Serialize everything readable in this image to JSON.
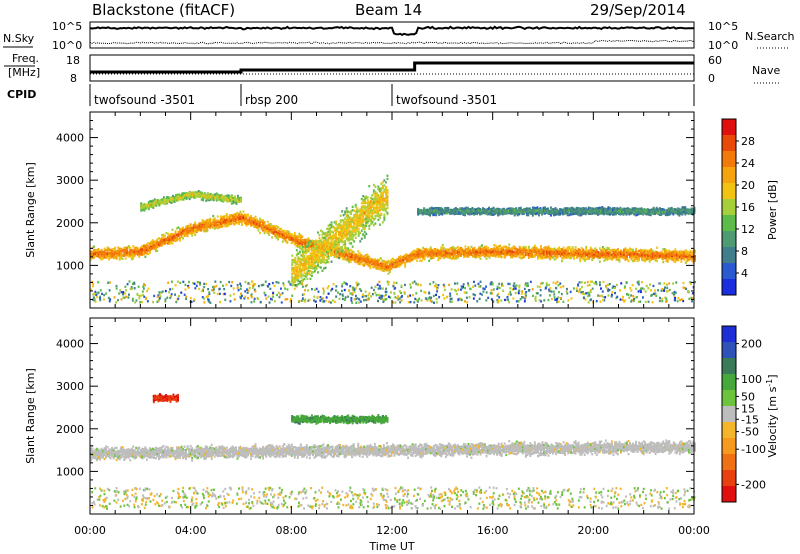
{
  "header": {
    "radar": "Blackstone (fitACF)",
    "beam": "Beam 14",
    "date": "29/Sep/2014"
  },
  "noise_panel": {
    "left_label": "N.Sky",
    "right_label": "N.Search",
    "left_ticks": [
      "10^5",
      "10^0"
    ],
    "right_ticks": [
      "10^5",
      "10^0"
    ]
  },
  "freq_panel": {
    "left_label_1": "Freq.",
    "left_label_2": "[MHz]",
    "right_label": "Nave",
    "left_ticks": [
      "18",
      "8"
    ],
    "right_ticks": [
      "60",
      "0"
    ]
  },
  "cpid": {
    "label": "CPID",
    "segments": [
      {
        "start_hour": 0,
        "end_hour": 6,
        "label": "twofsound -3501"
      },
      {
        "start_hour": 6,
        "end_hour": 12,
        "label": "rbsp 200"
      },
      {
        "start_hour": 12,
        "end_hour": 24,
        "label": "twofsound -3501"
      }
    ]
  },
  "time_axis": {
    "xlabel": "Time UT",
    "range_hours": [
      0,
      24
    ],
    "tick_labels": [
      "00:00",
      "04:00",
      "08:00",
      "12:00",
      "16:00",
      "20:00",
      "00:00"
    ]
  },
  "chart_data": [
    {
      "type": "heatmap",
      "name": "power",
      "xlabel": "Time UT",
      "ylabel": "Slant Range [km]",
      "xlim": [
        0,
        24
      ],
      "ylim": [
        0,
        4600
      ],
      "yticks": [
        1000,
        2000,
        3000,
        4000
      ],
      "colorbar": {
        "label": "Power [dB]",
        "range": [
          0,
          32
        ],
        "tick_values": [
          4,
          8,
          12,
          16,
          20,
          24,
          28
        ],
        "colors": [
          "#1a2ee0",
          "#2a5ad0",
          "#3f7e8a",
          "#4e9a72",
          "#5dbb4a",
          "#a7cf3c",
          "#f2c313",
          "#f5a30e",
          "#f27a0b",
          "#e94a0a",
          "#e01010"
        ]
      },
      "features": [
        {
          "name": "main_ionospheric_band",
          "t": [
            0,
            2,
            4,
            6,
            8,
            10,
            11.8,
            13,
            16,
            20,
            24
          ],
          "range_km": [
            1250,
            1300,
            1850,
            2100,
            1600,
            1250,
            950,
            1250,
            1300,
            1250,
            1200
          ],
          "peak_db": 26
        },
        {
          "name": "upper_band",
          "t": [
            2,
            4,
            6
          ],
          "range_km": [
            2350,
            2650,
            2500
          ],
          "peak_db": 18
        },
        {
          "name": "noon_echo_region",
          "t": [
            8,
            11.8
          ],
          "range_km": [
            800,
            2600
          ],
          "peak_db": 20
        },
        {
          "name": "high_range_band",
          "t": [
            13,
            24
          ],
          "range_km": [
            2250,
            2250
          ],
          "peak_db": 10
        }
      ]
    },
    {
      "type": "heatmap",
      "name": "velocity",
      "xlabel": "Time UT",
      "ylabel": "Slant Range [km]",
      "xlim": [
        0,
        24
      ],
      "ylim": [
        0,
        4600
      ],
      "yticks": [
        1000,
        2000,
        3000,
        4000
      ],
      "colorbar": {
        "label": "Velocity [m s^-1]",
        "range": [
          -250,
          250
        ],
        "tick_values": [
          200,
          100,
          50,
          15,
          -15,
          -50,
          -100,
          -200
        ],
        "colors": [
          "#1f2fd8",
          "#2f52b8",
          "#3a7a58",
          "#46a83a",
          "#6cc43c",
          "#bdbdbd",
          "#f5b52a",
          "#f59a1c",
          "#f07014",
          "#e8400f",
          "#e01010"
        ]
      },
      "features": [
        {
          "name": "low_velocity_band",
          "t": [
            0,
            24
          ],
          "range_km": [
            1400,
            1550
          ],
          "velocity_ms": 0
        },
        {
          "name": "westward_flow_patch",
          "t": [
            2.5,
            3.5
          ],
          "range_km": [
            2700,
            2700
          ],
          "velocity_ms": -200
        },
        {
          "name": "eastward_flow_patch",
          "t": [
            8,
            11.8
          ],
          "range_km": [
            2200,
            2200
          ],
          "velocity_ms": 100
        }
      ]
    }
  ]
}
